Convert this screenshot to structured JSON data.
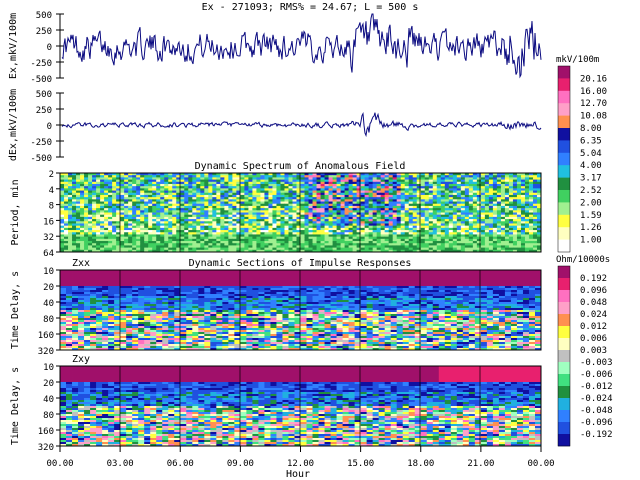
{
  "header": {
    "title": "Ex - 271093;   RMS% = 24.67;   L = 500 s"
  },
  "chart_data": [
    {
      "type": "line",
      "ylabel": "Ex,mkV/100m",
      "ylim": [
        -500,
        500
      ],
      "yticks": [
        "500",
        "250",
        "0",
        "-250",
        "-500"
      ],
      "noise_level": 180
    },
    {
      "type": "line",
      "ylabel": "dEx,mkV/100m",
      "ylim": [
        -500,
        500
      ],
      "yticks": [
        "500",
        "250",
        "0",
        "-250",
        "-500"
      ],
      "noise_level": 30
    },
    {
      "type": "heatmap",
      "title": "Dynamic Spectrum of Anomalous Field",
      "ylabel": "Period, min",
      "yticks": [
        "2",
        "4",
        "8",
        "16",
        "32",
        "64"
      ],
      "colorbar": {
        "unit": "mkV/100m",
        "labels": [
          "20.16",
          "16.00",
          "12.70",
          "10.08",
          "8.00",
          "6.35",
          "5.04",
          "4.00",
          "3.17",
          "2.52",
          "2.00",
          "1.59",
          "1.26",
          "1.00"
        ],
        "colors": [
          "#a0106a",
          "#e8206e",
          "#ff70c0",
          "#ffa0c8",
          "#ff9050",
          "#1010a0",
          "#2050e0",
          "#3080ff",
          "#20c0e0",
          "#209040",
          "#40d060",
          "#a0f090",
          "#ffff40",
          "#ffffc0",
          "#ffffff"
        ]
      }
    },
    {
      "type": "heatmap",
      "title": "Dynamic Sections of Impulse Responses",
      "panel_label": "Zxx",
      "ylabel": "Time Delay, s",
      "yticks": [
        "10",
        "20",
        "40",
        "80",
        "160",
        "320"
      ],
      "colorbar": {
        "unit": "Ohm/10000s",
        "labels": [
          "0.192",
          "0.096",
          "0.048",
          "0.024",
          "0.012",
          "0.006",
          "0.003",
          "-0.003",
          "-0.006",
          "-0.012",
          "-0.024",
          "-0.048",
          "-0.096",
          "-0.192"
        ],
        "colors": [
          "#a0106a",
          "#e8206e",
          "#ff70c0",
          "#ffa0c8",
          "#ff9050",
          "#ffff40",
          "#ffffc0",
          "#c0c0c0",
          "#a0ffc0",
          "#40e080",
          "#209040",
          "#20b0e0",
          "#3080ff",
          "#2050e0",
          "#1010a0"
        ]
      }
    },
    {
      "type": "heatmap",
      "panel_label": "Zxy",
      "ylabel": "Time Delay, s",
      "yticks": [
        "10",
        "20",
        "40",
        "80",
        "160",
        "320"
      ]
    }
  ],
  "xaxis": {
    "label": "Hour",
    "ticks": [
      "00.00",
      "03.00",
      "06.00",
      "09.00",
      "12.00",
      "15.00",
      "18.00",
      "21.00",
      "00.00"
    ]
  }
}
